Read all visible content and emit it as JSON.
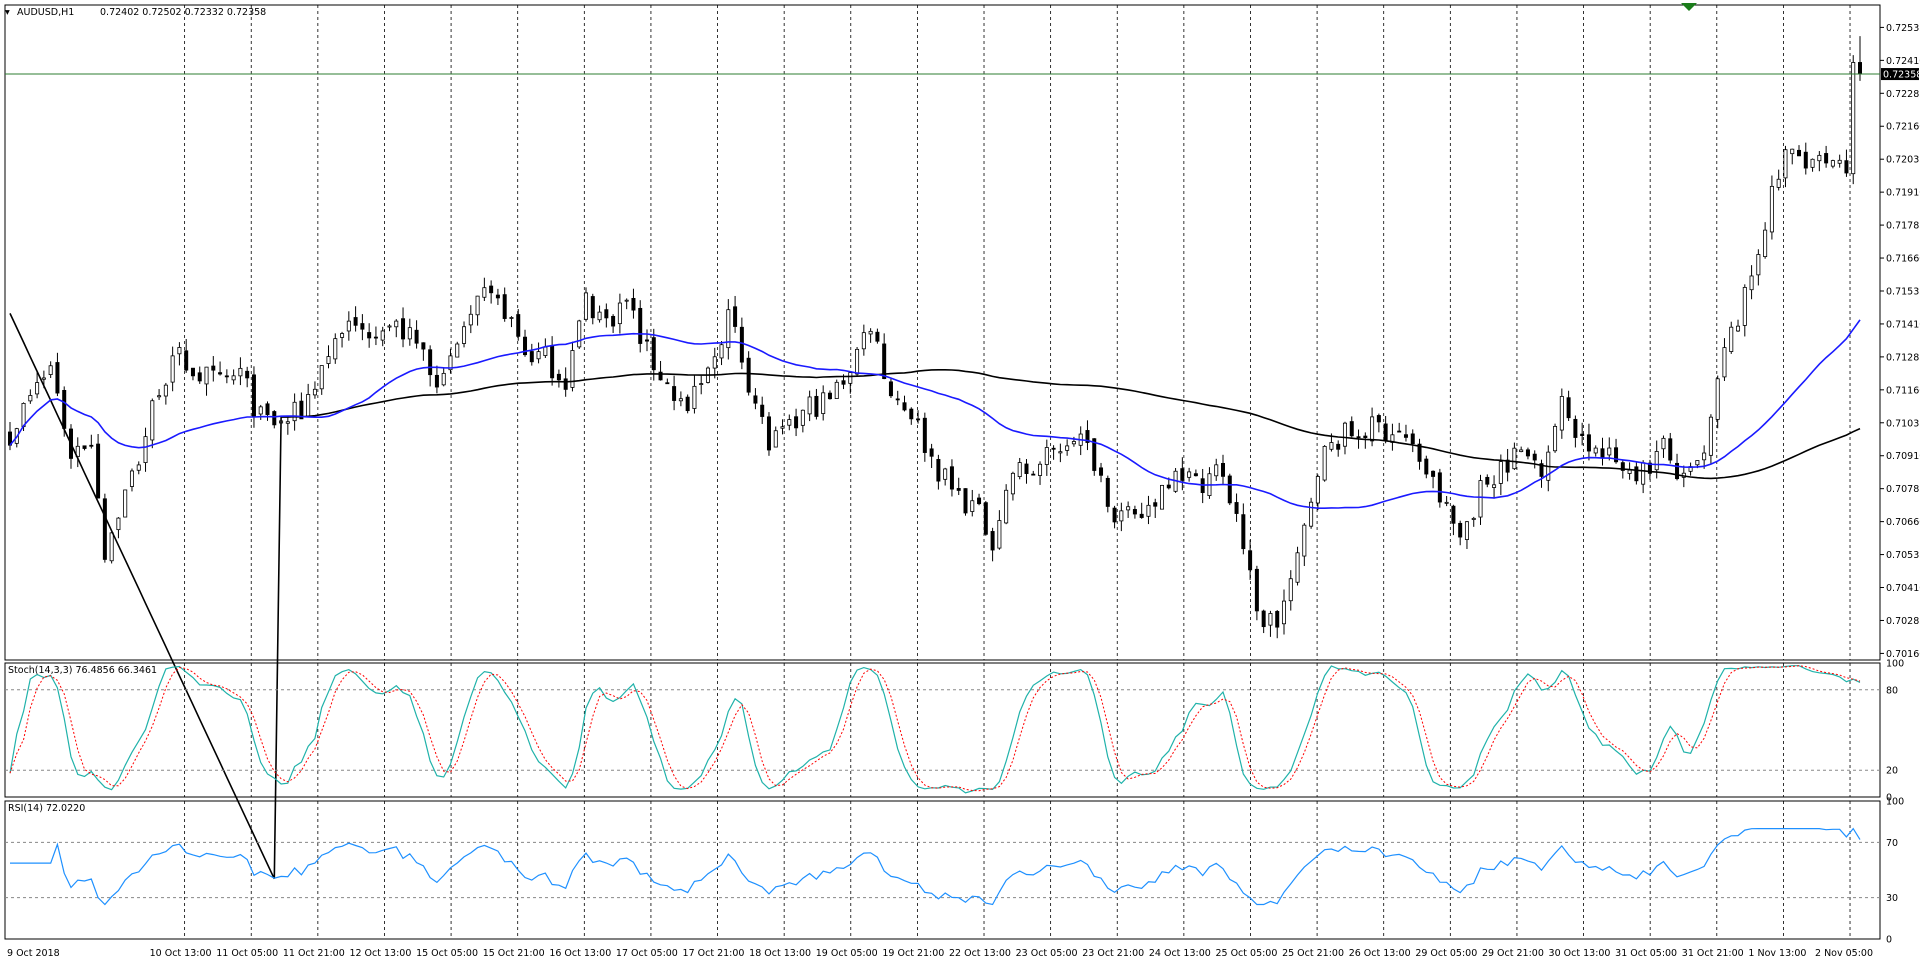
{
  "header": {
    "symbol_tf": "AUDUSD,H1",
    "ohlc": "0.72402 0.72502 0.72332 0.72358"
  },
  "colors": {
    "bull": "#000000",
    "bear": "#000000",
    "bull_fill": "#ffffff",
    "bear_fill": "#000000",
    "ma_fast": "#1a1aff",
    "ma_slow": "#000000",
    "price_line": "#2e7d32",
    "stoch_main": "#20b2aa",
    "stoch_signal": "#ff0000",
    "rsi": "#1e90ff",
    "grid": "#000000"
  },
  "chart_data": [
    {
      "type": "candlestick",
      "name": "AUDUSD,H1",
      "current_price": "0.72358",
      "price_ticks": [
        "0.72535",
        "0.72410",
        "0.72285",
        "0.72160",
        "0.72035",
        "0.71910",
        "0.71785",
        "0.71660",
        "0.71535",
        "0.71410",
        "0.71285",
        "0.71160",
        "0.71035",
        "0.70910",
        "0.70785",
        "0.70660",
        "0.70535",
        "0.70410",
        "0.70285",
        "0.70160"
      ],
      "ylim": [
        0.70135,
        0.7262
      ],
      "time_ticks": [
        "9 Oct 2018",
        "10 Oct 13:00",
        "11 Oct 05:00",
        "11 Oct 21:00",
        "12 Oct 13:00",
        "15 Oct 05:00",
        "15 Oct 21:00",
        "16 Oct 13:00",
        "17 Oct 05:00",
        "17 Oct 21:00",
        "18 Oct 13:00",
        "19 Oct 05:00",
        "19 Oct 21:00",
        "22 Oct 13:00",
        "23 Oct 05:00",
        "23 Oct 21:00",
        "24 Oct 13:00",
        "25 Oct 05:00",
        "25 Oct 21:00",
        "26 Oct 13:00",
        "29 Oct 05:00",
        "29 Oct 21:00",
        "30 Oct 13:00",
        "31 Oct 05:00",
        "31 Oct 21:00",
        "1 Nov 13:00",
        "2 Nov 05:00"
      ],
      "close_path": [
        [
          0,
          0.71
        ],
        [
          6,
          0.7125
        ],
        [
          9,
          0.7092
        ],
        [
          12,
          0.7098
        ],
        [
          14,
          0.7055
        ],
        [
          16,
          0.707
        ],
        [
          19,
          0.709
        ],
        [
          22,
          0.7118
        ],
        [
          25,
          0.7128
        ],
        [
          28,
          0.7122
        ],
        [
          31,
          0.7118
        ],
        [
          34,
          0.7122
        ],
        [
          37,
          0.7105
        ],
        [
          40,
          0.7103
        ],
        [
          43,
          0.7108
        ],
        [
          46,
          0.7125
        ],
        [
          49,
          0.714
        ],
        [
          52,
          0.7138
        ],
        [
          55,
          0.7142
        ],
        [
          58,
          0.7138
        ],
        [
          61,
          0.713
        ],
        [
          64,
          0.7118
        ],
        [
          67,
          0.714
        ],
        [
          70,
          0.715
        ],
        [
          73,
          0.7147
        ],
        [
          76,
          0.713
        ],
        [
          79,
          0.7128
        ],
        [
          82,
          0.712
        ],
        [
          85,
          0.715
        ],
        [
          88,
          0.7142
        ],
        [
          91,
          0.715
        ],
        [
          94,
          0.713
        ],
        [
          97,
          0.7118
        ],
        [
          100,
          0.7108
        ],
        [
          103,
          0.7122
        ],
        [
          106,
          0.7145
        ],
        [
          109,
          0.712
        ],
        [
          112,
          0.7095
        ],
        [
          115,
          0.71
        ],
        [
          118,
          0.711
        ],
        [
          121,
          0.7112
        ],
        [
          124,
          0.7125
        ],
        [
          127,
          0.7142
        ],
        [
          130,
          0.7115
        ],
        [
          133,
          0.7108
        ],
        [
          136,
          0.709
        ],
        [
          139,
          0.7078
        ],
        [
          142,
          0.7072
        ],
        [
          145,
          0.706
        ],
        [
          148,
          0.7085
        ],
        [
          151,
          0.7085
        ],
        [
          154,
          0.7092
        ],
        [
          157,
          0.71
        ],
        [
          160,
          0.709
        ],
        [
          163,
          0.707
        ],
        [
          166,
          0.7065
        ],
        [
          169,
          0.7075
        ],
        [
          172,
          0.7088
        ],
        [
          175,
          0.708
        ],
        [
          178,
          0.7086
        ],
        [
          181,
          0.707
        ],
        [
          184,
          0.703
        ],
        [
          187,
          0.7028
        ],
        [
          190,
          0.705
        ],
        [
          193,
          0.7088
        ],
        [
          196,
          0.7098
        ],
        [
          199,
          0.71
        ],
        [
          202,
          0.7102
        ],
        [
          205,
          0.71
        ],
        [
          208,
          0.709
        ],
        [
          211,
          0.7075
        ],
        [
          214,
          0.706
        ],
        [
          217,
          0.7078
        ],
        [
          220,
          0.7088
        ],
        [
          223,
          0.7092
        ],
        [
          226,
          0.7088
        ],
        [
          229,
          0.711
        ],
        [
          232,
          0.7098
        ],
        [
          235,
          0.709
        ],
        [
          238,
          0.7088
        ],
        [
          241,
          0.7085
        ],
        [
          244,
          0.7094
        ],
        [
          247,
          0.708
        ],
        [
          250,
          0.709
        ],
        [
          253,
          0.713
        ],
        [
          256,
          0.715
        ],
        [
          259,
          0.718
        ],
        [
          262,
          0.7205
        ],
        [
          265,
          0.7205
        ],
        [
          268,
          0.72
        ],
        [
          271,
          0.7198
        ],
        [
          272,
          0.724
        ],
        [
          273,
          0.72358
        ]
      ]
    },
    {
      "type": "line",
      "name": "Stoch(14,3,3)",
      "header_text": "Stoch(14,3,3) 76.4856 66.3461",
      "ylim": [
        0,
        100
      ],
      "ticks": [
        "100",
        "80",
        "20",
        "0"
      ],
      "levels": [
        80,
        20
      ]
    },
    {
      "type": "line",
      "name": "RSI(14)",
      "header_text": "RSI(14) 72.0220",
      "ylim": [
        0,
        100
      ],
      "ticks": [
        "100",
        "70",
        "30",
        "0"
      ],
      "levels": [
        70,
        30
      ]
    }
  ]
}
